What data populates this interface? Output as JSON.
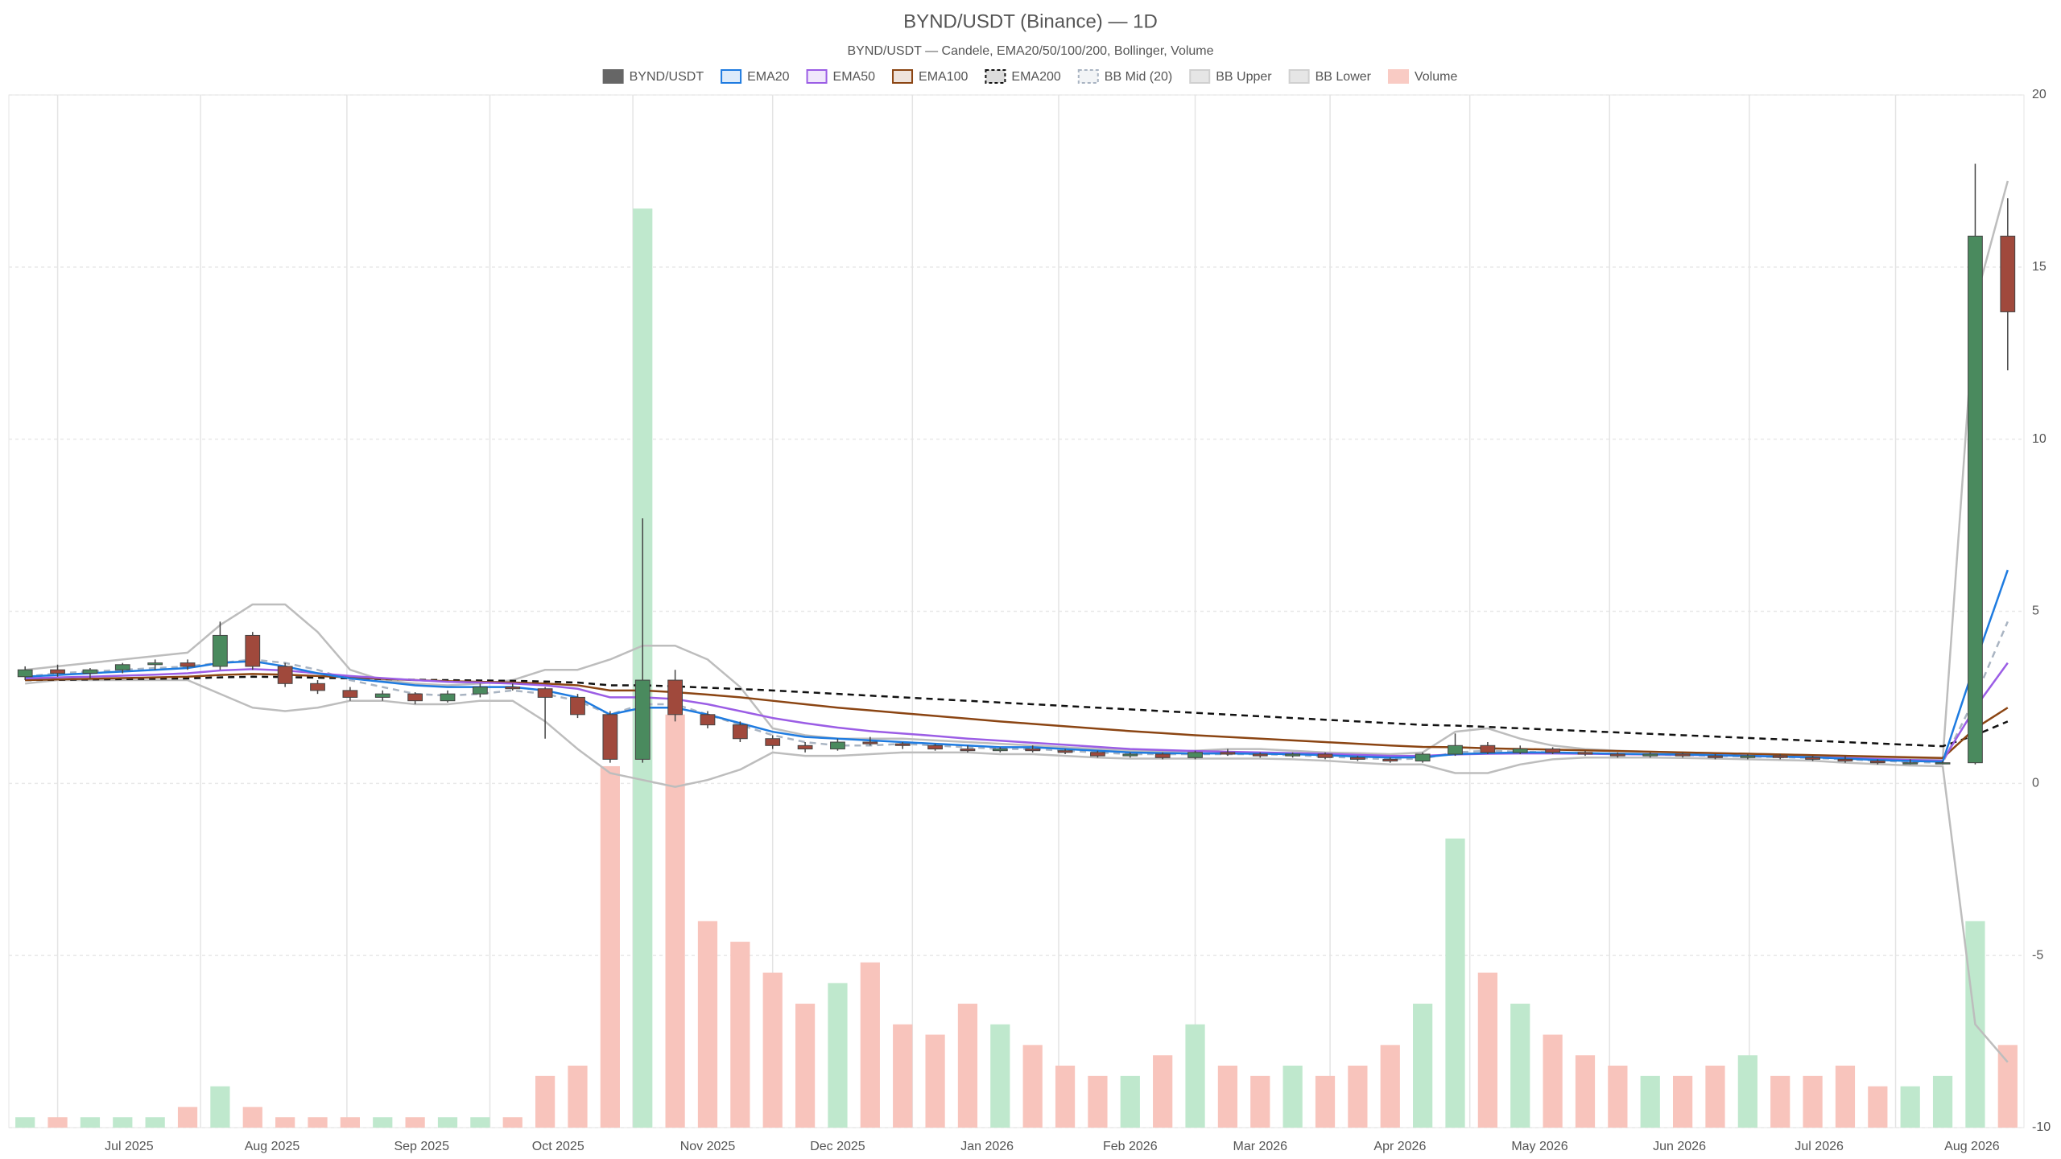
{
  "chart_data": {
    "type": "candlestick",
    "title": "BYND/USDT (Binance) — 1D",
    "subtitle": "BYND/USDT — Candele, EMA20/50/100/200, Bollinger, Volume",
    "categories": [
      null,
      null,
      null,
      null,
      null,
      null,
      null,
      null,
      null,
      null,
      null,
      null,
      null,
      null,
      null,
      null,
      null,
      null,
      null,
      null,
      null,
      null,
      null,
      null,
      null,
      null,
      null,
      null,
      null,
      null,
      null,
      null,
      null,
      null,
      null,
      null,
      null,
      null,
      null,
      null,
      null,
      null,
      null,
      null,
      null,
      null,
      null,
      null,
      null,
      null,
      null,
      null,
      null,
      null,
      null,
      null,
      null,
      null,
      null,
      null,
      null,
      null
    ],
    "xlim": [
      -0.5,
      61.5
    ],
    "xticks": [
      {
        "value": 3.2,
        "label": "Jul 2025"
      },
      {
        "value": 7.6,
        "label": "Aug 2025"
      },
      {
        "value": 12.2,
        "label": "Sep 2025"
      },
      {
        "value": 16.4,
        "label": "Oct 2025"
      },
      {
        "value": 21.0,
        "label": "Nov 2025"
      },
      {
        "value": 25.0,
        "label": "Dec 2025"
      },
      {
        "value": 29.6,
        "label": "Jan 2026"
      },
      {
        "value": 34.0,
        "label": "Feb 2026"
      },
      {
        "value": 38.0,
        "label": "Mar 2026"
      },
      {
        "value": 42.3,
        "label": "Apr 2026"
      },
      {
        "value": 46.6,
        "label": "May 2026"
      },
      {
        "value": 50.9,
        "label": "Jun 2026"
      },
      {
        "value": 55.2,
        "label": "Jul 2026"
      },
      {
        "value": 59.9,
        "label": "Aug 2026"
      }
    ],
    "ylim": [
      -10,
      20
    ],
    "yticks": [
      -10,
      -5,
      0,
      5,
      10,
      15,
      20
    ],
    "y2lim": [
      0,
      100
    ],
    "grid": true,
    "series": [
      {
        "name": "BYND/USDT",
        "type": "candlestick",
        "color": "#666666",
        "up_color": "#4a8a5e",
        "down_color": "#a0493c",
        "open": [
          3.1,
          3.3,
          3.2,
          3.3,
          3.45,
          3.5,
          3.4,
          4.3,
          3.4,
          2.9,
          2.7,
          2.5,
          2.6,
          2.4,
          2.6,
          2.8,
          2.75,
          2.5,
          2.0,
          0.7,
          3.0,
          2.0,
          1.7,
          1.3,
          1.1,
          1.0,
          1.2,
          1.15,
          1.1,
          1.0,
          0.95,
          1.0,
          0.95,
          0.9,
          0.8,
          0.85,
          0.75,
          0.9,
          0.85,
          0.8,
          0.85,
          0.75,
          0.7,
          0.65,
          0.85,
          1.1,
          0.9,
          1.0,
          0.9,
          0.85,
          0.8,
          0.85,
          0.8,
          0.75,
          0.8,
          0.75,
          0.7,
          0.65,
          0.6,
          0.6,
          0.6,
          15.9
        ],
        "high": [
          3.4,
          3.45,
          3.35,
          3.5,
          3.6,
          3.6,
          4.7,
          4.4,
          3.5,
          3.0,
          2.8,
          2.7,
          2.65,
          2.7,
          2.9,
          2.9,
          2.8,
          2.6,
          2.1,
          7.7,
          3.3,
          2.1,
          1.8,
          1.4,
          1.2,
          1.3,
          1.35,
          1.2,
          1.15,
          1.1,
          1.05,
          1.1,
          1.0,
          0.95,
          0.9,
          0.9,
          0.95,
          1.0,
          0.9,
          0.9,
          0.9,
          0.8,
          0.75,
          0.9,
          1.45,
          1.2,
          1.1,
          1.05,
          0.95,
          0.9,
          0.9,
          0.9,
          0.85,
          0.85,
          0.85,
          0.8,
          0.8,
          0.7,
          0.7,
          0.65,
          18.0,
          17.0
        ],
        "low": [
          3.0,
          3.1,
          3.05,
          3.2,
          3.3,
          3.3,
          3.3,
          3.3,
          2.8,
          2.6,
          2.4,
          2.4,
          2.3,
          2.35,
          2.5,
          2.7,
          1.3,
          1.9,
          0.6,
          0.6,
          1.8,
          1.6,
          1.2,
          1.0,
          0.9,
          0.95,
          1.1,
          1.0,
          0.95,
          0.9,
          0.9,
          0.9,
          0.85,
          0.75,
          0.75,
          0.7,
          0.7,
          0.8,
          0.75,
          0.75,
          0.7,
          0.65,
          0.6,
          0.6,
          0.8,
          0.85,
          0.85,
          0.85,
          0.8,
          0.75,
          0.75,
          0.75,
          0.7,
          0.7,
          0.7,
          0.65,
          0.6,
          0.55,
          0.55,
          0.55,
          0.55,
          12.0
        ],
        "close": [
          3.3,
          3.2,
          3.3,
          3.45,
          3.5,
          3.4,
          4.3,
          3.4,
          2.9,
          2.7,
          2.5,
          2.6,
          2.4,
          2.6,
          2.8,
          2.75,
          2.5,
          2.0,
          0.7,
          3.0,
          2.0,
          1.7,
          1.3,
          1.1,
          1.0,
          1.2,
          1.15,
          1.1,
          1.0,
          0.95,
          1.0,
          0.95,
          0.9,
          0.8,
          0.85,
          0.75,
          0.9,
          0.85,
          0.8,
          0.85,
          0.75,
          0.7,
          0.65,
          0.85,
          1.1,
          0.9,
          1.0,
          0.9,
          0.85,
          0.8,
          0.85,
          0.8,
          0.75,
          0.8,
          0.75,
          0.7,
          0.65,
          0.6,
          0.6,
          0.6,
          15.9,
          13.7
        ]
      },
      {
        "name": "EMA20",
        "type": "line",
        "color": "#1e7be0",
        "values": [
          3.1,
          3.15,
          3.2,
          3.25,
          3.3,
          3.35,
          3.5,
          3.55,
          3.4,
          3.2,
          3.05,
          2.95,
          2.85,
          2.8,
          2.8,
          2.8,
          2.7,
          2.5,
          2.0,
          2.2,
          2.2,
          2.0,
          1.75,
          1.5,
          1.35,
          1.3,
          1.25,
          1.2,
          1.15,
          1.1,
          1.05,
          1.05,
          1.0,
          0.95,
          0.9,
          0.88,
          0.87,
          0.87,
          0.86,
          0.85,
          0.82,
          0.78,
          0.75,
          0.76,
          0.85,
          0.88,
          0.9,
          0.9,
          0.88,
          0.86,
          0.85,
          0.84,
          0.82,
          0.8,
          0.78,
          0.76,
          0.72,
          0.68,
          0.65,
          0.63,
          3.5,
          6.2
        ]
      },
      {
        "name": "EMA50",
        "type": "line",
        "color": "#9b5de5",
        "values": [
          3.05,
          3.08,
          3.1,
          3.13,
          3.16,
          3.2,
          3.28,
          3.32,
          3.28,
          3.2,
          3.12,
          3.06,
          3.0,
          2.95,
          2.93,
          2.9,
          2.85,
          2.75,
          2.5,
          2.5,
          2.45,
          2.3,
          2.1,
          1.9,
          1.75,
          1.62,
          1.52,
          1.45,
          1.38,
          1.3,
          1.24,
          1.18,
          1.12,
          1.06,
          1.0,
          0.97,
          0.94,
          0.92,
          0.9,
          0.88,
          0.86,
          0.83,
          0.8,
          0.8,
          0.84,
          0.86,
          0.87,
          0.87,
          0.86,
          0.85,
          0.84,
          0.83,
          0.82,
          0.8,
          0.78,
          0.76,
          0.74,
          0.71,
          0.68,
          0.66,
          2.2,
          3.5
        ]
      },
      {
        "name": "EMA100",
        "type": "line",
        "color": "#8b4513",
        "values": [
          3.0,
          3.02,
          3.04,
          3.06,
          3.08,
          3.1,
          3.15,
          3.18,
          3.16,
          3.12,
          3.08,
          3.04,
          3.0,
          2.97,
          2.95,
          2.93,
          2.9,
          2.85,
          2.7,
          2.7,
          2.65,
          2.58,
          2.5,
          2.4,
          2.3,
          2.2,
          2.12,
          2.04,
          1.96,
          1.88,
          1.8,
          1.73,
          1.66,
          1.59,
          1.52,
          1.46,
          1.4,
          1.35,
          1.3,
          1.25,
          1.2,
          1.15,
          1.1,
          1.06,
          1.05,
          1.02,
          1.0,
          0.98,
          0.96,
          0.94,
          0.92,
          0.9,
          0.88,
          0.86,
          0.84,
          0.82,
          0.8,
          0.78,
          0.76,
          0.74,
          1.6,
          2.2
        ]
      },
      {
        "name": "EMA200",
        "type": "line",
        "color": "#111111",
        "dash": true,
        "values": [
          3.0,
          3.01,
          3.02,
          3.03,
          3.04,
          3.05,
          3.08,
          3.1,
          3.09,
          3.07,
          3.05,
          3.03,
          3.01,
          3.0,
          2.99,
          2.98,
          2.96,
          2.93,
          2.85,
          2.85,
          2.82,
          2.78,
          2.74,
          2.7,
          2.65,
          2.6,
          2.55,
          2.5,
          2.45,
          2.4,
          2.35,
          2.3,
          2.25,
          2.2,
          2.15,
          2.1,
          2.05,
          2.0,
          1.95,
          1.9,
          1.85,
          1.8,
          1.75,
          1.7,
          1.68,
          1.64,
          1.6,
          1.56,
          1.52,
          1.48,
          1.44,
          1.4,
          1.36,
          1.32,
          1.28,
          1.24,
          1.2,
          1.16,
          1.12,
          1.08,
          1.4,
          1.8
        ]
      },
      {
        "name": "BB Mid (20)",
        "type": "line",
        "color": "#a9b4c2",
        "dash": true,
        "values": [
          3.1,
          3.2,
          3.25,
          3.3,
          3.35,
          3.4,
          3.5,
          3.6,
          3.5,
          3.3,
          3.0,
          2.8,
          2.6,
          2.55,
          2.6,
          2.7,
          2.6,
          2.4,
          2.0,
          2.3,
          2.3,
          2.0,
          1.7,
          1.4,
          1.2,
          1.1,
          1.1,
          1.15,
          1.1,
          1.05,
          1.0,
          1.0,
          0.95,
          0.9,
          0.85,
          0.85,
          0.85,
          0.85,
          0.85,
          0.82,
          0.78,
          0.74,
          0.7,
          0.72,
          0.9,
          0.95,
          0.92,
          0.9,
          0.88,
          0.85,
          0.84,
          0.82,
          0.8,
          0.78,
          0.76,
          0.74,
          0.7,
          0.66,
          0.62,
          0.6,
          2.5,
          4.7
        ]
      },
      {
        "name": "BB Upper",
        "type": "line",
        "color": "#bdbdbd",
        "values": [
          3.3,
          3.4,
          3.5,
          3.6,
          3.7,
          3.8,
          4.6,
          5.2,
          5.2,
          4.4,
          3.3,
          3.0,
          2.9,
          2.85,
          2.9,
          3.0,
          3.3,
          3.3,
          3.6,
          4.0,
          4.0,
          3.6,
          2.8,
          1.6,
          1.4,
          1.3,
          1.3,
          1.3,
          1.25,
          1.2,
          1.15,
          1.1,
          1.05,
          1.0,
          0.95,
          0.92,
          0.95,
          1.0,
          1.0,
          0.95,
          0.9,
          0.88,
          0.85,
          0.9,
          1.5,
          1.6,
          1.3,
          1.1,
          1.0,
          0.95,
          0.92,
          0.9,
          0.88,
          0.86,
          0.84,
          0.82,
          0.8,
          0.76,
          0.72,
          0.7,
          14.0,
          17.5
        ]
      },
      {
        "name": "BB Lower",
        "type": "line",
        "color": "#bdbdbd",
        "values": [
          2.9,
          3.0,
          3.0,
          3.0,
          3.0,
          3.0,
          2.6,
          2.2,
          2.1,
          2.2,
          2.4,
          2.4,
          2.3,
          2.3,
          2.4,
          2.4,
          1.8,
          1.0,
          0.3,
          0.1,
          -0.1,
          0.1,
          0.4,
          0.9,
          0.8,
          0.8,
          0.85,
          0.9,
          0.9,
          0.9,
          0.85,
          0.85,
          0.8,
          0.75,
          0.72,
          0.72,
          0.72,
          0.72,
          0.72,
          0.7,
          0.66,
          0.6,
          0.55,
          0.55,
          0.3,
          0.3,
          0.55,
          0.7,
          0.75,
          0.75,
          0.75,
          0.74,
          0.72,
          0.7,
          0.68,
          0.66,
          0.6,
          0.56,
          0.52,
          0.5,
          -7.0,
          -8.1
        ]
      },
      {
        "name": "Volume",
        "type": "bar",
        "axis": "y2",
        "color": "#f9cbc4",
        "up_color": "#bfe8cd",
        "down_color": "#f8c4bc",
        "values": [
          1,
          1,
          1,
          1,
          1,
          2,
          4,
          2,
          1,
          1,
          1,
          1,
          1,
          1,
          1,
          1,
          5,
          6,
          35,
          89,
          40,
          20,
          18,
          15,
          12,
          14,
          16,
          10,
          9,
          12,
          10,
          8,
          6,
          5,
          5,
          7,
          10,
          6,
          5,
          6,
          5,
          6,
          8,
          12,
          28,
          15,
          12,
          9,
          7,
          6,
          5,
          5,
          6,
          7,
          5,
          5,
          6,
          4,
          4,
          5,
          20,
          8
        ]
      }
    ]
  }
}
